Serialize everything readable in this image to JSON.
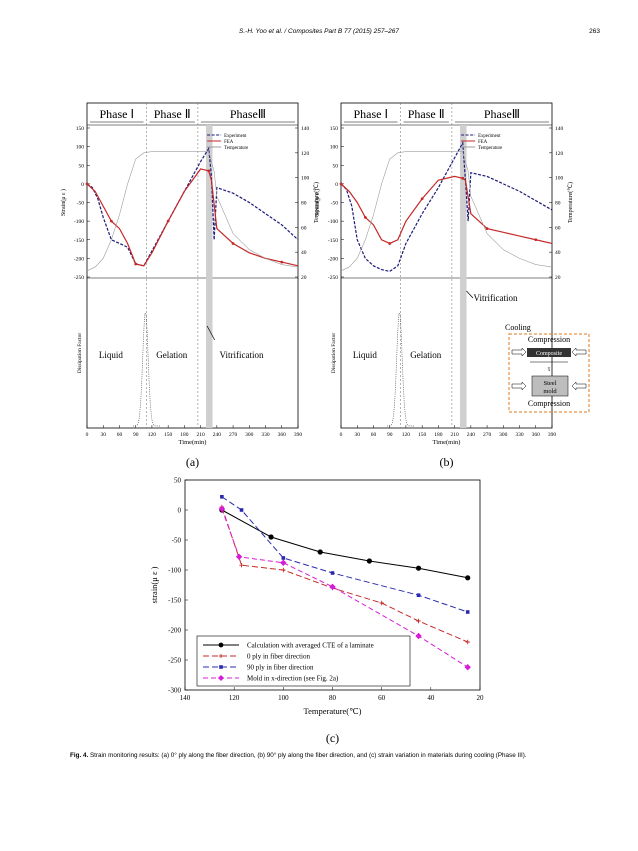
{
  "header": {
    "running_title": "S.-H. Yoo et al. / Composites Part B 77 (2015) 257–267",
    "page_number": "263"
  },
  "phases": [
    "Phase Ⅰ",
    "Phase Ⅱ",
    "PhaseⅢ"
  ],
  "panels_top": {
    "y_left_ticks": [
      "150",
      "100",
      "50",
      "0",
      "-50",
      "-100",
      "-150",
      "-200",
      "-250"
    ],
    "y_right_ticks": [
      "140",
      "120",
      "100",
      "80",
      "60",
      "40",
      "20"
    ],
    "x_ticks": [
      "0",
      "30",
      "60",
      "90",
      "120",
      "150",
      "180",
      "210",
      "240",
      "270",
      "300",
      "330",
      "360",
      "390"
    ],
    "y_left_label": "Strain(μ ε )",
    "y_right_label": "Temperature(℃)",
    "lower_y_label": "Dissipation Factor",
    "x_label": "Time(min)",
    "legend": [
      "Experiment",
      "FEA",
      "Temperature"
    ],
    "region_labels": {
      "liquid": "Liquid",
      "gelation": "Gelation",
      "vitrification": "Vitrification"
    },
    "a_label": "(a)",
    "b_label": "(b)",
    "inset": {
      "cooling": "Cooling",
      "compression_top": "Compression",
      "composite": "Composite",
      "tau": "τ",
      "steel": "Steel",
      "mold": "mold",
      "compression_bottom": "Compression"
    }
  },
  "chart_data": [
    {
      "panel": "(a)",
      "type": "line",
      "x_unit": "min",
      "series": [
        {
          "name": "Experiment",
          "color": "#1b1b7a",
          "x": [
            0,
            10,
            20,
            30,
            45,
            60,
            75,
            90,
            105,
            120,
            150,
            180,
            210,
            225,
            230,
            235,
            240,
            270,
            300,
            330,
            360,
            390
          ],
          "y": [
            0,
            -10,
            -40,
            -90,
            -150,
            -160,
            -170,
            -215,
            -220,
            -180,
            -100,
            -20,
            60,
            95,
            20,
            -150,
            -10,
            -25,
            -50,
            -80,
            -110,
            -150
          ]
        },
        {
          "name": "FEA",
          "color": "#c62828",
          "x": [
            0,
            15,
            30,
            45,
            60,
            75,
            90,
            105,
            120,
            150,
            180,
            210,
            225,
            230,
            240,
            270,
            300,
            330,
            360,
            390
          ],
          "y": [
            0,
            -20,
            -60,
            -100,
            -120,
            -160,
            -215,
            -220,
            -185,
            -100,
            -20,
            40,
            35,
            10,
            -120,
            -160,
            -185,
            -200,
            -210,
            -220
          ]
        },
        {
          "name": "Temperature",
          "color": "#9e9e9e",
          "x": [
            0,
            15,
            30,
            45,
            60,
            75,
            90,
            105,
            120,
            150,
            180,
            210,
            225,
            235,
            240,
            255,
            270,
            300,
            330,
            360,
            390
          ],
          "y": [
            25,
            28,
            35,
            50,
            70,
            95,
            115,
            120,
            121,
            121,
            121,
            121,
            121,
            105,
            85,
            70,
            55,
            42,
            35,
            30,
            28
          ]
        }
      ],
      "ylim": [
        -250,
        150
      ],
      "y2lim": [
        20,
        140
      ],
      "xlim": [
        0,
        390
      ]
    },
    {
      "panel": "(b)",
      "type": "line",
      "x_unit": "min",
      "series": [
        {
          "name": "Experiment",
          "color": "#1b1b7a",
          "x": [
            0,
            10,
            20,
            30,
            45,
            60,
            75,
            90,
            105,
            120,
            150,
            180,
            210,
            225,
            230,
            235,
            240,
            270,
            300,
            330,
            360,
            390
          ],
          "y": [
            0,
            -15,
            -60,
            -150,
            -200,
            -220,
            -230,
            -235,
            -220,
            -160,
            -80,
            -10,
            70,
            110,
            10,
            -100,
            30,
            20,
            0,
            -20,
            -45,
            -70
          ]
        },
        {
          "name": "FEA",
          "color": "#c62828",
          "x": [
            0,
            15,
            30,
            45,
            60,
            75,
            90,
            105,
            120,
            150,
            180,
            210,
            225,
            230,
            240,
            270,
            300,
            330,
            360,
            390
          ],
          "y": [
            0,
            -20,
            -50,
            -90,
            -110,
            -150,
            -160,
            -150,
            -100,
            -40,
            10,
            20,
            15,
            10,
            -80,
            -120,
            -130,
            -140,
            -150,
            -160
          ]
        },
        {
          "name": "Temperature",
          "color": "#9e9e9e",
          "x": [
            0,
            15,
            30,
            45,
            60,
            75,
            90,
            105,
            120,
            150,
            180,
            210,
            225,
            235,
            240,
            255,
            270,
            300,
            330,
            360,
            390
          ],
          "y": [
            25,
            28,
            35,
            50,
            70,
            95,
            115,
            120,
            121,
            121,
            121,
            121,
            121,
            105,
            85,
            70,
            55,
            42,
            35,
            30,
            28
          ]
        }
      ],
      "ylim": [
        -250,
        150
      ],
      "y2lim": [
        20,
        140
      ],
      "xlim": [
        0,
        390
      ]
    },
    {
      "panel": "(c)",
      "type": "line",
      "xlabel": "Temperature(℃)",
      "ylabel": "strain(μ ε )",
      "xlim": [
        140,
        20
      ],
      "ylim": [
        -300,
        50
      ],
      "x_ticks": [
        "140",
        "120",
        "100",
        "80",
        "60",
        "40",
        "20"
      ],
      "y_ticks": [
        "50",
        "0",
        "-50",
        "-100",
        "-150",
        "-200",
        "-250",
        "-300"
      ],
      "series": [
        {
          "name": "Calculation with averaged CTE of a laminate",
          "color": "#000000",
          "dash": "",
          "marker": "circle",
          "x": [
            125,
            105,
            85,
            65,
            45,
            25
          ],
          "y": [
            0,
            -45,
            -70,
            -85,
            -97,
            -113
          ]
        },
        {
          "name": "0  ply in fiber direction",
          "color": "#c62828",
          "dash": "6,3",
          "marker": "plus",
          "x": [
            125,
            117,
            100,
            80,
            60,
            45,
            25
          ],
          "y": [
            5,
            -92,
            -100,
            -130,
            -155,
            -185,
            -220
          ]
        },
        {
          "name": "90  ply in fiber direction",
          "color": "#2929b0",
          "dash": "6,3",
          "marker": "square",
          "x": [
            125,
            117,
            100,
            80,
            45,
            25
          ],
          "y": [
            22,
            0,
            -80,
            -105,
            -142,
            -170
          ]
        },
        {
          "name": "Mold in x-direction (see Fig. 2a)",
          "color": "#d81bd8",
          "dash": "5,3",
          "marker": "diamond",
          "x": [
            125,
            118,
            100,
            80,
            45,
            25
          ],
          "y": [
            2,
            -78,
            -88,
            -128,
            -210,
            -262
          ]
        }
      ],
      "panel_label": "(c)"
    }
  ],
  "caption": {
    "lead": "Fig. 4.",
    "text": " Strain monitoring results: (a) 0° ply along the fiber direction, (b) 90° ply along the fiber direction, and (c) strain variation in materials during cooling (Phase III)."
  }
}
